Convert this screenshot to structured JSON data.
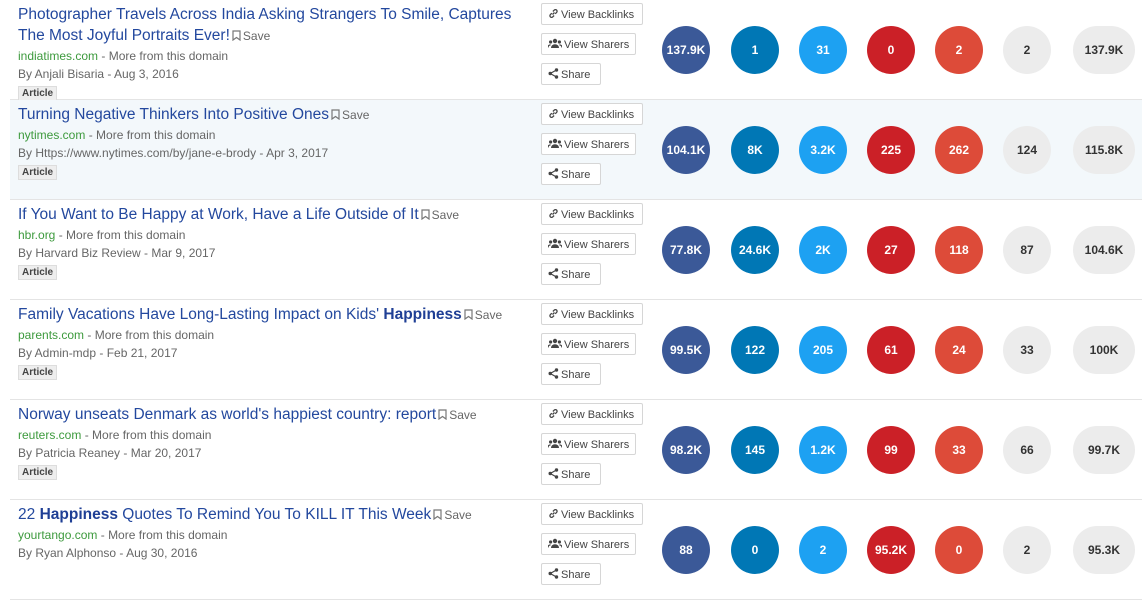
{
  "labels": {
    "save": "Save",
    "more_from_domain": "More from this domain",
    "view_backlinks": "View Backlinks",
    "view_sharers": "View Sharers",
    "share": "Share"
  },
  "colors": {
    "facebook": "#3b5998",
    "linkedin": "#0077b5",
    "twitter": "#1da1f2",
    "pinterest": "#cb2027",
    "reddit": "#dd4b39",
    "neutral": "#ececec",
    "title_link": "#23489e",
    "domain_link": "#3d9a3d"
  },
  "icons": {
    "save": "bookmark-icon",
    "backlinks": "link-icon",
    "sharers": "users-icon",
    "share": "share-icon"
  },
  "results": [
    {
      "title_parts": [
        {
          "text": "Photographer Travels Across India Asking Strangers To Smile, Captures The Most Joyful Portraits Ever!",
          "bold": false
        }
      ],
      "domain": "indiatimes.com",
      "byline": "By Anjali Bisaria - Aug 3, 2016",
      "type": "Article",
      "metrics": [
        "137.9K",
        "1",
        "31",
        "0",
        "2",
        "2",
        "137.9K"
      ]
    },
    {
      "title_parts": [
        {
          "text": "Turning Negative Thinkers Into Positive Ones",
          "bold": false
        }
      ],
      "domain": "nytimes.com",
      "byline": "By Https://www.nytimes.com/by/jane-e-brody - Apr 3, 2017",
      "type": "Article",
      "metrics": [
        "104.1K",
        "8K",
        "3.2K",
        "225",
        "262",
        "124",
        "115.8K"
      ]
    },
    {
      "title_parts": [
        {
          "text": "If You Want to Be Happy at Work, Have a Life Outside of It",
          "bold": false
        }
      ],
      "domain": "hbr.org",
      "byline": "By Harvard Biz Review - Mar 9, 2017",
      "type": "Article",
      "metrics": [
        "77.8K",
        "24.6K",
        "2K",
        "27",
        "118",
        "87",
        "104.6K"
      ]
    },
    {
      "title_parts": [
        {
          "text": "Family Vacations Have Long-Lasting Impact on Kids' ",
          "bold": false
        },
        {
          "text": "Happiness",
          "bold": true
        }
      ],
      "domain": "parents.com",
      "byline": "By Admin-mdp - Feb 21, 2017",
      "type": "Article",
      "metrics": [
        "99.5K",
        "122",
        "205",
        "61",
        "24",
        "33",
        "100K"
      ]
    },
    {
      "title_parts": [
        {
          "text": "Norway unseats Denmark as world's happiest country: report",
          "bold": false
        }
      ],
      "domain": "reuters.com",
      "byline": "By Patricia Reaney - Mar 20, 2017",
      "type": "Article",
      "metrics": [
        "98.2K",
        "145",
        "1.2K",
        "99",
        "33",
        "66",
        "99.7K"
      ]
    },
    {
      "title_parts": [
        {
          "text": "22 ",
          "bold": false
        },
        {
          "text": "Happiness",
          "bold": true
        },
        {
          "text": " Quotes To Remind You To KILL IT This Week",
          "bold": false
        }
      ],
      "domain": "yourtango.com",
      "byline": "By Ryan Alphonso - Aug 30, 2016",
      "type": "",
      "metrics": [
        "88",
        "0",
        "2",
        "95.2K",
        "0",
        "2",
        "95.3K"
      ]
    }
  ]
}
